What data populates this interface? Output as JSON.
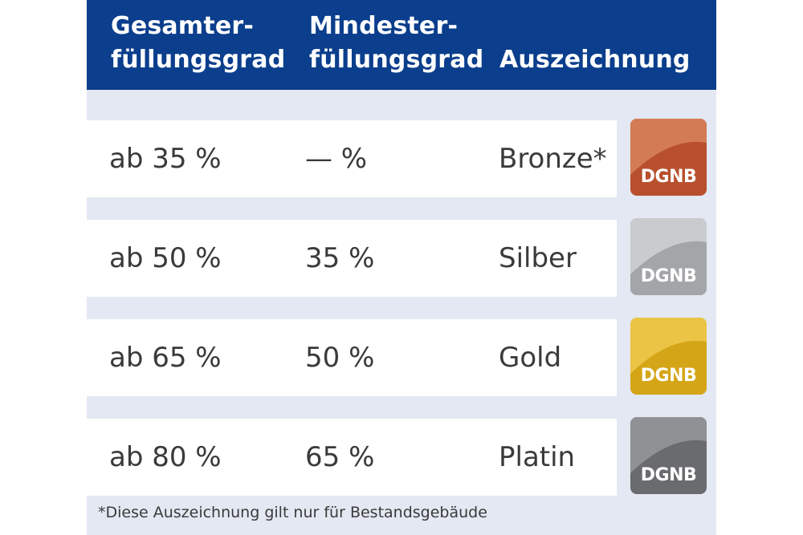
{
  "header": {
    "col1": [
      "Gesamter-",
      "füllungsgrad"
    ],
    "col2": [
      "Mindester-",
      "füllungsgrad"
    ],
    "col3": "Auszeichnung"
  },
  "rows": [
    {
      "total": "ab 35 %",
      "min": "— %",
      "award": "Bronze*",
      "badge_label": "DGNB",
      "badge_color": "#b8502e",
      "badge_light": "#dc8a62"
    },
    {
      "total": "ab 50 %",
      "min": "35 %",
      "award": "Silber",
      "badge_label": "DGNB",
      "badge_color": "#a3a5a8",
      "badge_light": "#d2d4d6"
    },
    {
      "total": "ab 65 %",
      "min": "50 %",
      "award": "Gold",
      "badge_label": "DGNB",
      "badge_color": "#d4a516",
      "badge_light": "#f0cc52"
    },
    {
      "total": "ab 80 %",
      "min": "65 %",
      "award": "Platin",
      "badge_label": "DGNB",
      "badge_color": "#6a6b6e",
      "badge_light": "#9a9b9e"
    }
  ],
  "footnote": "*Diese Auszeichnung gilt nur für Bestandsgebäude",
  "colors": {
    "header_bg": "#0b3e8c",
    "panel_bg": "#e3e8f2",
    "text": "#3a3a3a"
  }
}
